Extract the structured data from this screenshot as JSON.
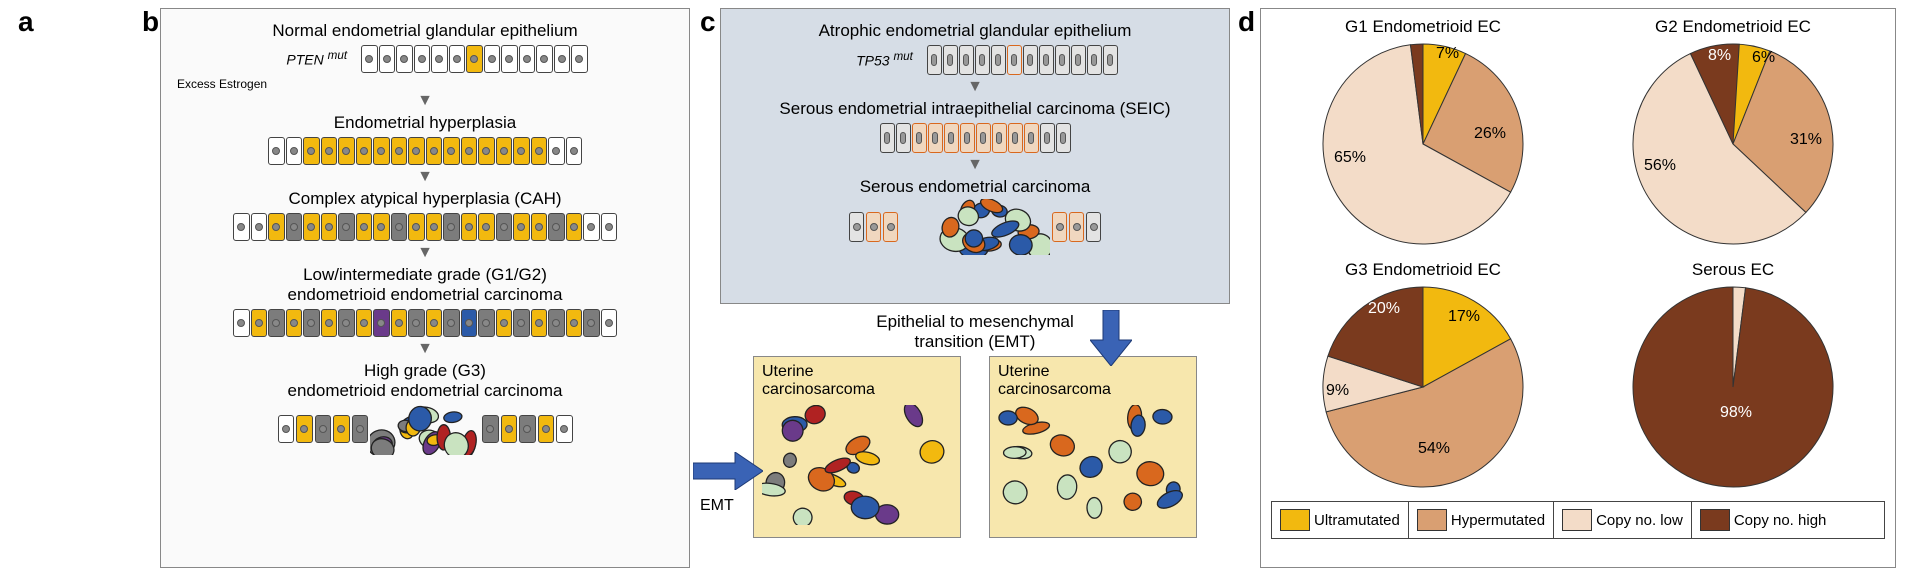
{
  "labels": {
    "a": "a",
    "b": "b",
    "c": "c",
    "d": "d"
  },
  "colors": {
    "ultramutated": "#f2b90f",
    "hypermutated": "#d99f72",
    "copy_low": "#f3dcc8",
    "copy_high": "#7a3a1e",
    "cell_border": "#444444",
    "cell_normal_fill": "#ffffff",
    "cell_mutant_fill": "#f2b90f",
    "cell_gray_fill": "#7c7c7c",
    "cell_orange_border": "#d9681e",
    "cell_blue": "#2b5aa8",
    "cell_red": "#b02222",
    "cell_purple": "#6a3a8a",
    "cell_green": "#c9e3c0",
    "arrow_blue": "#3a63b5",
    "panel_b_bg": "#fafafa",
    "panel_c_bg": "#d6dde6",
    "carcino_bg": "#f7e7ad"
  },
  "panel_b": {
    "stages": [
      {
        "title": "Normal endometrial glandular epithelium",
        "sub_html": "PTEN <sup>mut</sup>"
      },
      {
        "title": "Endometrial hyperplasia"
      },
      {
        "title": "Complex atypical hyperplasia (CAH)"
      },
      {
        "title": "Low/intermediate grade (G1/G2)\nendometrioid endometrial carcinoma"
      },
      {
        "title": "High grade (G3)\nendometrioid endometrial carcinoma"
      }
    ],
    "excess": "Excess Estrogen"
  },
  "panel_c": {
    "stages": [
      {
        "title": "Atrophic endometrial glandular epithelium",
        "sub_html": "TP53 <sup>mut</sup>"
      },
      {
        "title": "Serous endometrial intraepithelial carcinoma (SEIC)"
      },
      {
        "title": "Serous endometrial carcinoma"
      }
    ],
    "emt_label": "Epithelial to mesenchymal\ntransition (EMT)",
    "emt_short": "EMT",
    "carcino_title": "Uterine\ncarcinosarcoma"
  },
  "panel_d": {
    "pies": [
      {
        "title": "G1 Endometrioid EC",
        "slices": [
          {
            "key": "ultramutated",
            "pct": 7,
            "label": "7%"
          },
          {
            "key": "hypermutated",
            "pct": 26,
            "label": "26%"
          },
          {
            "key": "copy_low",
            "pct": 65,
            "label": "65%"
          },
          {
            "key": "copy_high",
            "pct": 2,
            "label": "2%"
          }
        ],
        "label_positions": {
          "ultramutated": [
            118,
            6
          ],
          "hypermutated": [
            156,
            86
          ],
          "copy_low": [
            16,
            110
          ],
          "copy_high": [
            -100,
            -100
          ]
        }
      },
      {
        "title": "G2 Endometrioid EC",
        "slices": [
          {
            "key": "ultramutated",
            "pct": 6,
            "label": "6%"
          },
          {
            "key": "hypermutated",
            "pct": 31,
            "label": "31%"
          },
          {
            "key": "copy_low",
            "pct": 56,
            "label": "56%"
          },
          {
            "key": "copy_high",
            "pct": 8,
            "label": "8%"
          }
        ],
        "label_positions": {
          "ultramutated": [
            124,
            10
          ],
          "hypermutated": [
            162,
            92
          ],
          "copy_low": [
            16,
            118
          ],
          "copy_high": [
            80,
            8
          ]
        }
      },
      {
        "title": "G3 Endometrioid EC",
        "slices": [
          {
            "key": "ultramutated",
            "pct": 17,
            "label": "17%"
          },
          {
            "key": "hypermutated",
            "pct": 54,
            "label": "54%"
          },
          {
            "key": "copy_low",
            "pct": 9,
            "label": "9%"
          },
          {
            "key": "copy_high",
            "pct": 20,
            "label": "20%"
          }
        ],
        "label_positions": {
          "ultramutated": [
            130,
            26
          ],
          "hypermutated": [
            100,
            158
          ],
          "copy_low": [
            8,
            100
          ],
          "copy_high": [
            50,
            18
          ]
        }
      },
      {
        "title": "Serous EC",
        "slices": [
          {
            "key": "ultramutated",
            "pct": 0,
            "label": ""
          },
          {
            "key": "hypermutated",
            "pct": 0,
            "label": ""
          },
          {
            "key": "copy_low",
            "pct": 2,
            "label": ""
          },
          {
            "key": "copy_high",
            "pct": 98,
            "label": "98%"
          }
        ],
        "label_positions": {
          "copy_high": [
            92,
            122
          ]
        }
      }
    ],
    "legend": [
      {
        "key": "ultramutated",
        "label": "Ultramutated"
      },
      {
        "key": "hypermutated",
        "label": "Hypermutated"
      },
      {
        "key": "copy_low",
        "label": "Copy no. low"
      },
      {
        "key": "copy_high",
        "label": "Copy no. high"
      }
    ]
  }
}
